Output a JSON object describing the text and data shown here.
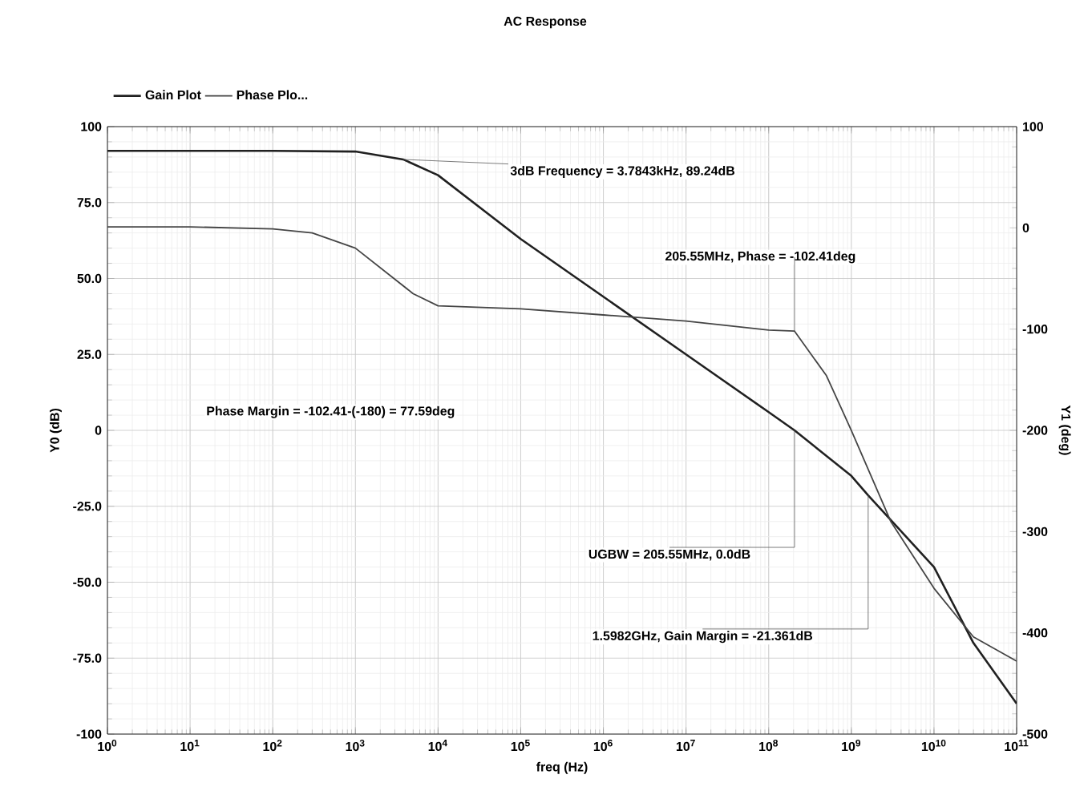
{
  "chart_data": {
    "type": "line",
    "title": "AC Response",
    "xlabel": "freq (Hz)",
    "ylabel": "Y0 (dB)",
    "y2label": "Y1 (deg)",
    "log": "x",
    "grid": true,
    "legend": "top left",
    "xlim": [
      1,
      100000000000
    ],
    "xticks": [
      {
        "value": 1,
        "label": "10$^{0}$"
      },
      {
        "value": 10,
        "label": "10$^{1}$"
      },
      {
        "value": 100,
        "label": "10$^{2}$"
      },
      {
        "value": 1000,
        "label": "10$^{3}$"
      },
      {
        "value": 10000,
        "label": "10$^{4}$"
      },
      {
        "value": 100000,
        "label": "10$^{5}$"
      },
      {
        "value": 1000000,
        "label": "10$^{6}$"
      },
      {
        "value": 10000000,
        "label": "10$^{7}$"
      },
      {
        "value": 100000000,
        "label": "10$^{8}$"
      },
      {
        "value": 1000000000,
        "label": "10$^{9}$"
      },
      {
        "value": 10000000000,
        "label": "10$^{10}$"
      },
      {
        "value": 100000000000,
        "label": "10$^{11}$"
      }
    ],
    "ylim": [
      -100,
      100
    ],
    "yticks": [
      100,
      {
        "value": 75,
        "label": "75.0"
      },
      {
        "value": 50,
        "label": "50.0"
      },
      {
        "value": 25,
        "label": "25.0"
      },
      0,
      {
        "value": -25,
        "label": "-25.0"
      },
      {
        "value": -50,
        "label": "-50.0"
      },
      {
        "value": -75,
        "label": "-75.0"
      },
      -100
    ],
    "y2lim": [
      -500,
      100
    ],
    "y2ticks": [
      100,
      0,
      -100,
      -200,
      -300,
      -400,
      -500
    ],
    "series": [
      {
        "name": "Gain Plot",
        "color": "#202020",
        "x": [
          1,
          10,
          100,
          1000,
          3784.3,
          10000,
          100000,
          1000000,
          10000000,
          100000000,
          205550000,
          1000000000,
          1598200000,
          10000000000,
          30000000000,
          100000000000
        ],
        "values": [
          92,
          92,
          92,
          91.8,
          89.2,
          84,
          63,
          44,
          25,
          6,
          0,
          -15,
          -21.4,
          -45,
          -70,
          -90
        ]
      },
      {
        "name": "Phase Plo...",
        "color": "#454545",
        "axis": "y2",
        "x": [
          1,
          10,
          100,
          300,
          1000,
          5000,
          10000,
          100000,
          1000000,
          10000000,
          100000000,
          205550000,
          500000000,
          1000000000,
          3000000000,
          10000000000,
          30000000000,
          100000000000
        ],
        "values": [
          1,
          1,
          -1,
          -5,
          -20,
          -65,
          -77,
          -80,
          -86,
          -92,
          -101,
          -102,
          -146,
          -200,
          -290,
          -356,
          -404,
          -428
        ]
      }
    ],
    "annotations": [
      {
        "text": "3dB Frequency = 3.7843kHz, 89.24dB",
        "x": 3784.3,
        "y": 89.2
      },
      {
        "text": "205.55MHz, Phase = -102.41deg",
        "x": 205550000,
        "y": 32.5
      },
      "Phase Margin = -102.41-(-180) = 77.59deg",
      {
        "text": "UGBW = 205.55MHz, 0.0dB",
        "x": 205550000,
        "y": 0
      },
      {
        "text": "1.5982GHz, Gain Margin = -21.361dB",
        "x": 1598200000,
        "y": -21.4
      }
    ]
  }
}
